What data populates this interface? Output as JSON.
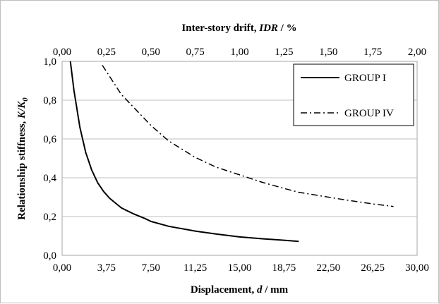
{
  "chart_data": {
    "type": "line",
    "title": "",
    "xlabel_parts": [
      "Displacement, ",
      "d",
      " / mm"
    ],
    "x2label_parts": [
      "Inter-story drift, ",
      "IDR",
      " / %"
    ],
    "ylabel_parts": [
      "Relationship stiffness, ",
      "K/K",
      "0"
    ],
    "xlim": [
      0,
      30
    ],
    "x2lim": [
      0,
      2
    ],
    "ylim": [
      0,
      1
    ],
    "x_ticks": [
      "0,00",
      "3,75",
      "7,50",
      "11,25",
      "15,00",
      "18,75",
      "22,50",
      "26,25",
      "30,00"
    ],
    "x2_ticks": [
      "0,00",
      "0,25",
      "0,50",
      "0,75",
      "1,00",
      "1,25",
      "1,50",
      "1,75",
      "2,00"
    ],
    "y_ticks": [
      "0,0",
      "0,2",
      "0,4",
      "0,6",
      "0,8",
      "1,0"
    ],
    "grid": {
      "x": false,
      "y": true
    },
    "legend_position": "top-right",
    "series": [
      {
        "name": "GROUP I",
        "line_style": "solid",
        "color": "#000000",
        "x": [
          0.7,
          1.0,
          1.5,
          2.0,
          2.5,
          3.0,
          3.5,
          4.0,
          5.0,
          5.5,
          6.0,
          7.0,
          7.5,
          9.0,
          11.25,
          13.0,
          15.0,
          17.0,
          18.75,
          20.0
        ],
        "y": [
          1.0,
          0.85,
          0.66,
          0.53,
          0.44,
          0.375,
          0.33,
          0.295,
          0.245,
          0.23,
          0.215,
          0.19,
          0.175,
          0.15,
          0.125,
          0.11,
          0.095,
          0.085,
          0.078,
          0.072
        ]
      },
      {
        "name": "GROUP IV",
        "line_style": "dash-dot",
        "color": "#000000",
        "x": [
          3.4,
          5.0,
          7.5,
          9.0,
          11.25,
          13.0,
          15.0,
          17.0,
          18.75,
          20.0,
          22.5,
          24.0,
          26.25,
          28.0
        ],
        "y": [
          0.98,
          0.83,
          0.67,
          0.59,
          0.505,
          0.455,
          0.415,
          0.375,
          0.345,
          0.325,
          0.3,
          0.285,
          0.265,
          0.252
        ]
      }
    ]
  }
}
